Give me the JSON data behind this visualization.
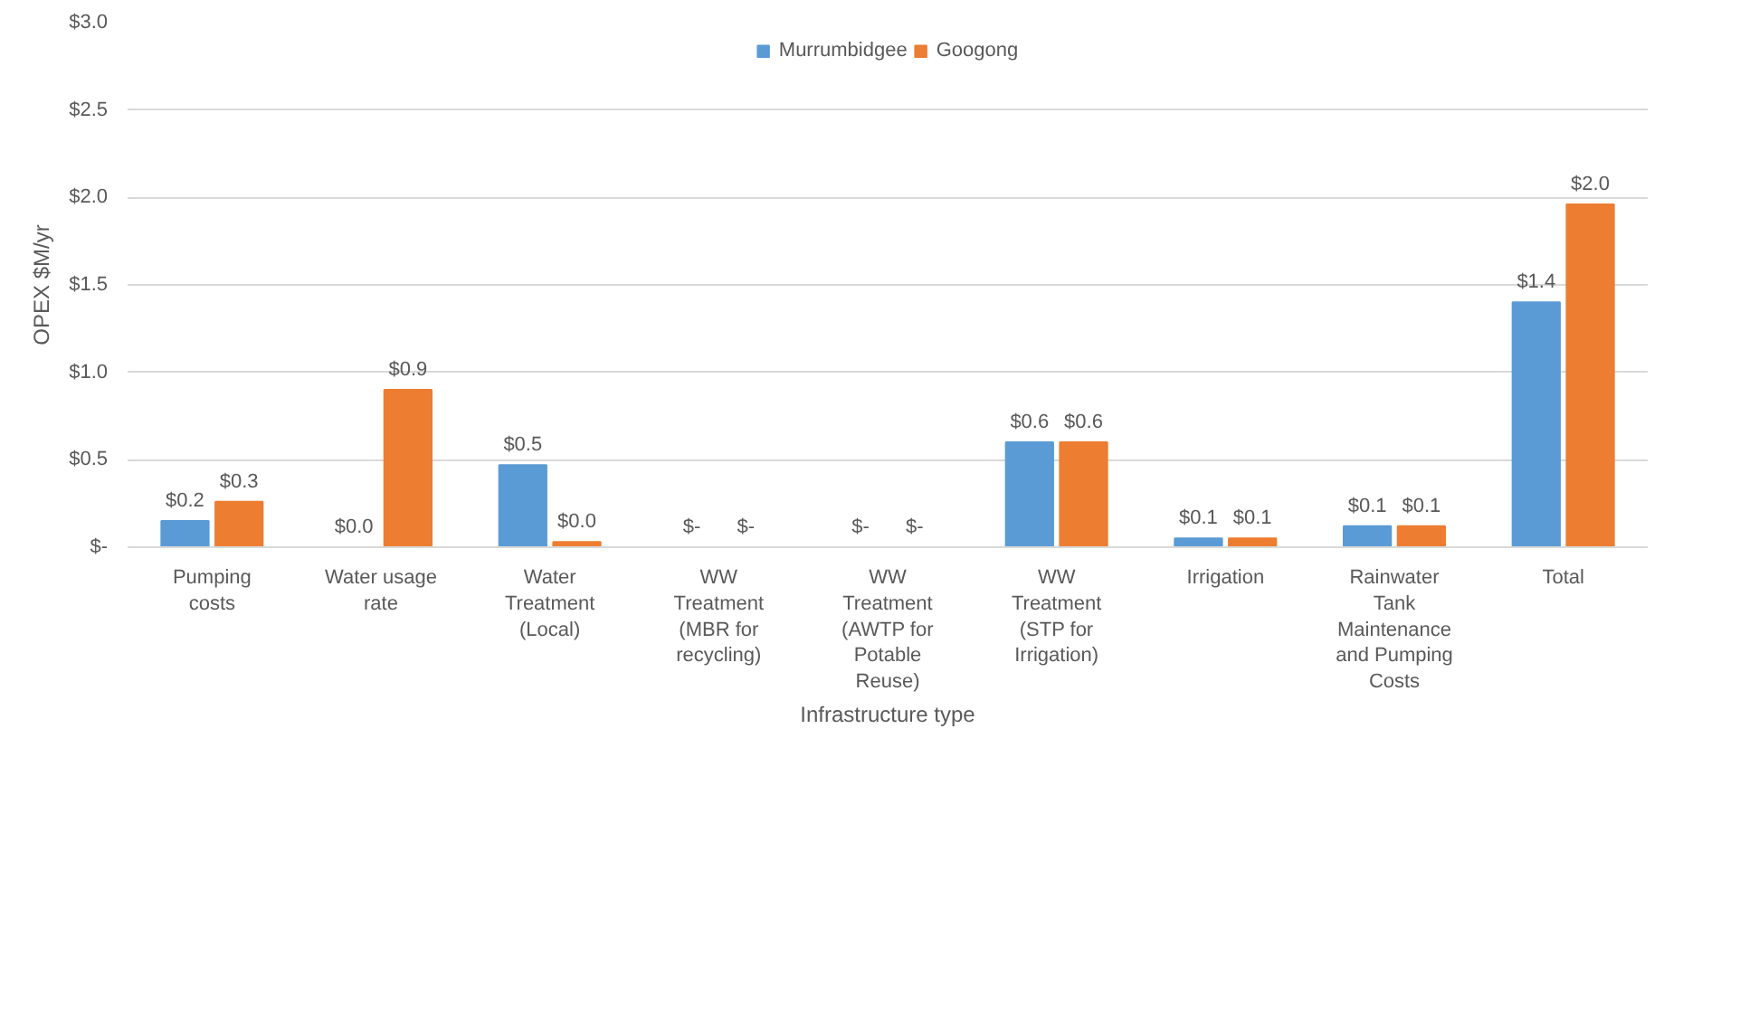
{
  "chart_data": {
    "type": "bar",
    "xlabel": "Infrastructure type",
    "ylabel": "OPEX $M/yr",
    "categories": [
      "Pumping\ncosts",
      "Water usage\nrate",
      "Water\nTreatment\n(Local)",
      "WW\nTreatment\n(MBR for\nrecycling)",
      "WW\nTreatment\n(AWTP for\nPotable\nReuse)",
      "WW\nTreatment\n(STP for\nIrrigation)",
      "Irrigation",
      "Rainwater\nTank\nMaintenance\nand Pumping\nCosts",
      "Total"
    ],
    "series": [
      {
        "name": "Murrumbidgee",
        "color": "#5b9bd5",
        "values": [
          0.15,
          0,
          0.47,
          0,
          0,
          0.6,
          0.05,
          0.12,
          1.4
        ],
        "value_labels": [
          "$0.2",
          "$0.0",
          "$0.5",
          "$-",
          "$-",
          "$0.6",
          "$0.1",
          "$0.1",
          "$1.4"
        ]
      },
      {
        "name": "Googong",
        "color": "#ed7d31",
        "values": [
          0.26,
          0.9,
          0.03,
          0,
          0,
          0.6,
          0.05,
          0.12,
          1.96
        ],
        "value_labels": [
          "$0.3",
          "$0.9",
          "$0.0",
          "$-",
          "$-",
          "$0.6",
          "$0.1",
          "$0.1",
          "$2.0"
        ]
      }
    ],
    "ylim": [
      0,
      3
    ],
    "yticks": [
      {
        "value": 0,
        "label": "$-"
      },
      {
        "value": 0.5,
        "label": "$0.5"
      },
      {
        "value": 1,
        "label": "$1.0"
      },
      {
        "value": 1.5,
        "label": "$1.5"
      },
      {
        "value": 2,
        "label": "$2.0"
      },
      {
        "value": 2.5,
        "label": "$2.5"
      },
      {
        "value": 3,
        "label": "$3.0"
      }
    ],
    "grid": "y",
    "legend": "top"
  }
}
